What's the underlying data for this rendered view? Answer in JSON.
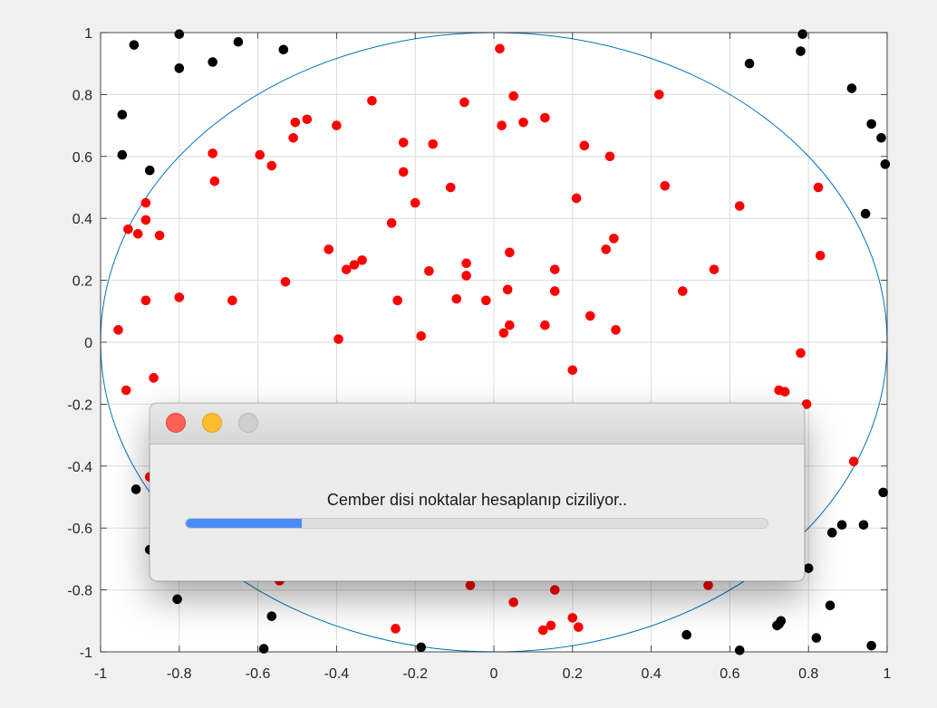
{
  "window": {
    "dialog_message": "Cember disi noktalar hesaplanıp ciziliyor..",
    "progress": 0.2,
    "buttons": [
      "close",
      "minimize",
      "zoom"
    ]
  },
  "colors": {
    "background": "#f0f0f0",
    "axes_background": "#ffffff",
    "grid": "#dcdcdc",
    "circle": "#0072bd",
    "inside_points": "#ff0000",
    "outside_points": "#000000",
    "progress_fill": "#4a8df8"
  },
  "chart_data": {
    "type": "scatter",
    "xlim": [
      -1,
      1
    ],
    "ylim": [
      -1,
      1
    ],
    "grid": true,
    "x_ticks": [
      "-1",
      "-0.8",
      "-0.6",
      "-0.4",
      "-0.2",
      "0",
      "0.2",
      "0.4",
      "0.6",
      "0.8",
      "1"
    ],
    "y_ticks": [
      "-1",
      "-0.8",
      "-0.6",
      "-0.4",
      "-0.2",
      "0",
      "0.2",
      "0.4",
      "0.6",
      "0.8",
      "1"
    ],
    "circle": {
      "center": [
        0,
        0
      ],
      "radius": 1
    },
    "series": [
      {
        "marker_color": "#ff0000",
        "points": [
          [
            0.015,
            0.948
          ],
          [
            0.05,
            0.795
          ],
          [
            -0.31,
            0.78
          ],
          [
            -0.075,
            0.775
          ],
          [
            0.42,
            0.8
          ],
          [
            -0.475,
            0.72
          ],
          [
            0.13,
            0.725
          ],
          [
            0.075,
            0.71
          ],
          [
            0.02,
            0.7
          ],
          [
            -0.505,
            0.71
          ],
          [
            -0.4,
            0.7
          ],
          [
            -0.51,
            0.66
          ],
          [
            -0.23,
            0.645
          ],
          [
            -0.155,
            0.64
          ],
          [
            0.23,
            0.635
          ],
          [
            -0.595,
            0.605
          ],
          [
            -0.715,
            0.61
          ],
          [
            0.295,
            0.6
          ],
          [
            -0.565,
            0.57
          ],
          [
            -0.23,
            0.55
          ],
          [
            -0.71,
            0.52
          ],
          [
            0.435,
            0.505
          ],
          [
            -0.11,
            0.5
          ],
          [
            0.825,
            0.5
          ],
          [
            0.21,
            0.465
          ],
          [
            -0.2,
            0.45
          ],
          [
            -0.885,
            0.45
          ],
          [
            0.625,
            0.44
          ],
          [
            -0.885,
            0.395
          ],
          [
            -0.26,
            0.385
          ],
          [
            -0.93,
            0.365
          ],
          [
            -0.905,
            0.35
          ],
          [
            -0.85,
            0.345
          ],
          [
            0.305,
            0.335
          ],
          [
            0.285,
            0.3
          ],
          [
            -0.42,
            0.3
          ],
          [
            0.04,
            0.29
          ],
          [
            0.83,
            0.28
          ],
          [
            -0.335,
            0.265
          ],
          [
            -0.07,
            0.255
          ],
          [
            -0.355,
            0.25
          ],
          [
            0.155,
            0.235
          ],
          [
            -0.375,
            0.235
          ],
          [
            -0.165,
            0.23
          ],
          [
            0.56,
            0.235
          ],
          [
            -0.07,
            0.215
          ],
          [
            -0.53,
            0.195
          ],
          [
            0.035,
            0.17
          ],
          [
            0.155,
            0.165
          ],
          [
            0.48,
            0.165
          ],
          [
            -0.8,
            0.145
          ],
          [
            -0.095,
            0.14
          ],
          [
            -0.245,
            0.135
          ],
          [
            -0.02,
            0.135
          ],
          [
            -0.665,
            0.135
          ],
          [
            -0.885,
            0.135
          ],
          [
            0.245,
            0.085
          ],
          [
            0.04,
            0.055
          ],
          [
            0.13,
            0.055
          ],
          [
            0.31,
            0.04
          ],
          [
            -0.955,
            0.04
          ],
          [
            0.025,
            0.03
          ],
          [
            -0.185,
            0.02
          ],
          [
            -0.395,
            0.01
          ],
          [
            0.78,
            -0.035
          ],
          [
            0.2,
            -0.09
          ],
          [
            -0.865,
            -0.115
          ],
          [
            -0.935,
            -0.155
          ],
          [
            0.725,
            -0.155
          ],
          [
            0.74,
            -0.16
          ],
          [
            0.795,
            -0.2
          ],
          [
            0.915,
            -0.385
          ],
          [
            -0.875,
            -0.435
          ],
          [
            -0.06,
            -0.785
          ],
          [
            0.155,
            -0.8
          ],
          [
            0.545,
            -0.785
          ],
          [
            0.05,
            -0.84
          ],
          [
            0.2,
            -0.89
          ],
          [
            0.215,
            -0.92
          ],
          [
            0.145,
            -0.915
          ],
          [
            0.125,
            -0.93
          ],
          [
            -0.25,
            -0.925
          ],
          [
            -0.58,
            -0.755
          ],
          [
            -0.545,
            -0.77
          ]
        ]
      },
      {
        "marker_color": "#000000",
        "points": [
          [
            -0.8,
            0.995
          ],
          [
            -0.915,
            0.96
          ],
          [
            -0.65,
            0.97
          ],
          [
            -0.535,
            0.945
          ],
          [
            -0.715,
            0.905
          ],
          [
            -0.8,
            0.885
          ],
          [
            0.785,
            0.995
          ],
          [
            0.78,
            0.94
          ],
          [
            0.65,
            0.9
          ],
          [
            0.91,
            0.82
          ],
          [
            -0.945,
            0.735
          ],
          [
            -0.945,
            0.605
          ],
          [
            -0.875,
            0.555
          ],
          [
            0.96,
            0.705
          ],
          [
            0.985,
            0.66
          ],
          [
            0.995,
            0.575
          ],
          [
            0.945,
            0.415
          ],
          [
            0.99,
            -0.485
          ],
          [
            0.94,
            -0.59
          ],
          [
            0.885,
            -0.59
          ],
          [
            0.86,
            -0.615
          ],
          [
            0.8,
            -0.73
          ],
          [
            0.855,
            -0.85
          ],
          [
            0.82,
            -0.955
          ],
          [
            0.96,
            -0.98
          ],
          [
            0.73,
            -0.9
          ],
          [
            0.725,
            -0.91
          ],
          [
            0.72,
            -0.915
          ],
          [
            0.625,
            -0.995
          ],
          [
            0.49,
            -0.945
          ],
          [
            -0.185,
            -0.985
          ],
          [
            -0.585,
            -0.99
          ],
          [
            -0.565,
            -0.885
          ],
          [
            -0.805,
            -0.83
          ],
          [
            -0.875,
            -0.67
          ],
          [
            -0.91,
            -0.475
          ]
        ]
      }
    ]
  }
}
